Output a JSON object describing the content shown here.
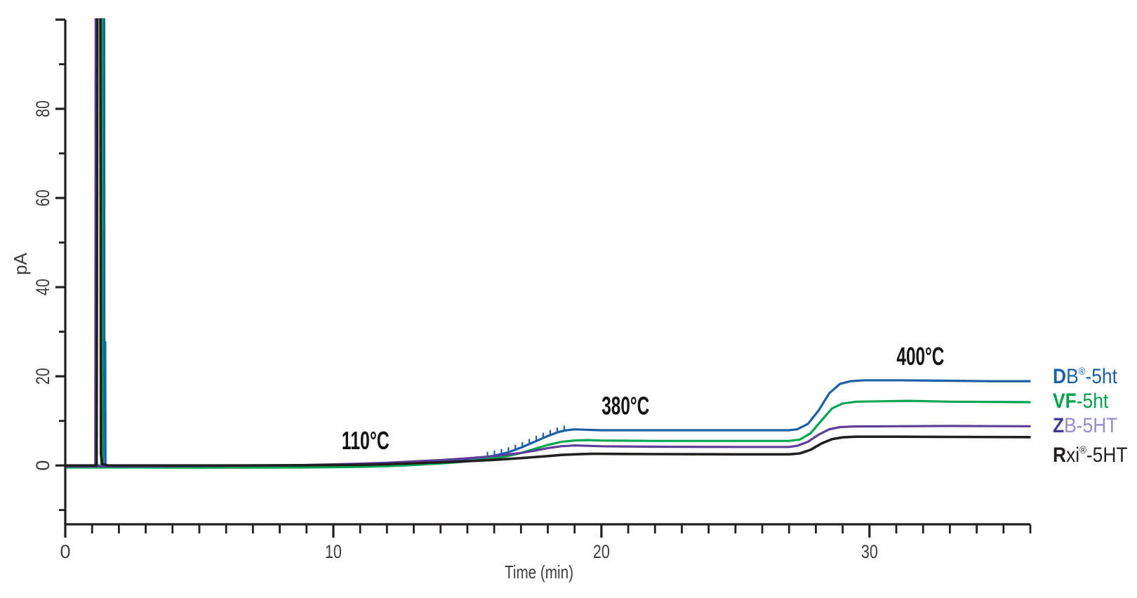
{
  "chart_data": {
    "type": "line",
    "title": "",
    "xlabel": "Time (min)",
    "ylabel": "pA",
    "xlim": [
      0,
      36
    ],
    "ylim": [
      -13.2,
      100
    ],
    "x_major_ticks": [
      0,
      10,
      20,
      30
    ],
    "x_minor_step": 1,
    "y_major_ticks": [
      0,
      20,
      40,
      60,
      80,
      100
    ],
    "y_minor_ticks": [
      -10,
      10,
      30,
      50,
      70,
      90
    ],
    "y_tick_labels": [
      0,
      20,
      40,
      60,
      80
    ],
    "grid": false,
    "legend_position": "right-outside",
    "axis_color": "#231f20",
    "tick_label_color": "#3d3d3d",
    "annotations": [
      {
        "text": "110°C",
        "x_min": 11.2,
        "y_pA": 5.7
      },
      {
        "text": "380°C",
        "x_min": 20.9,
        "y_pA": 13.5
      },
      {
        "text": "400°C",
        "x_min": 31.9,
        "y_pA": 24.6
      }
    ],
    "solvent_peak_time_min": 1.3,
    "series": [
      {
        "name": "DB®-5ht",
        "color": "#1a5fa8",
        "width": 3.2,
        "points": [
          [
            0,
            0
          ],
          [
            1.41,
            0
          ],
          [
            1.425,
            105
          ],
          [
            1.45,
            105
          ],
          [
            1.458,
            27.7
          ],
          [
            1.49,
            27.7
          ],
          [
            1.5,
            0
          ],
          [
            3,
            0
          ],
          [
            6,
            0
          ],
          [
            9,
            0.05
          ],
          [
            11,
            0.2
          ],
          [
            12,
            0.35
          ],
          [
            13,
            0.6
          ],
          [
            14,
            1.0
          ],
          [
            15,
            1.5
          ],
          [
            15.7,
            1.9
          ],
          [
            16,
            2.2
          ],
          [
            16.5,
            2.9
          ],
          [
            17,
            4.0
          ],
          [
            17.5,
            5.3
          ],
          [
            18,
            6.6
          ],
          [
            18.4,
            7.5
          ],
          [
            18.7,
            7.9
          ],
          [
            19,
            8.1
          ],
          [
            19.4,
            8.0
          ],
          [
            20,
            7.9
          ],
          [
            22,
            7.9
          ],
          [
            25,
            7.9
          ],
          [
            27,
            7.9
          ],
          [
            27.3,
            8.1
          ],
          [
            27.7,
            9.3
          ],
          [
            28.1,
            12.3
          ],
          [
            28.5,
            16.2
          ],
          [
            28.9,
            18.3
          ],
          [
            29.3,
            18.9
          ],
          [
            29.8,
            19.1
          ],
          [
            31,
            19.1
          ],
          [
            33,
            19.0
          ],
          [
            34.5,
            18.9
          ],
          [
            36,
            18.9
          ]
        ]
      },
      {
        "name": "VF-5ht",
        "color": "#00a551",
        "width": 3.2,
        "points": [
          [
            0,
            -0.45
          ],
          [
            1.34,
            -0.45
          ],
          [
            1.355,
            105
          ],
          [
            1.375,
            105
          ],
          [
            1.39,
            -0.45
          ],
          [
            3,
            -0.45
          ],
          [
            6,
            -0.5
          ],
          [
            9,
            -0.45
          ],
          [
            11,
            -0.3
          ],
          [
            12,
            -0.15
          ],
          [
            13,
            0.1
          ],
          [
            14,
            0.45
          ],
          [
            15,
            0.9
          ],
          [
            16,
            1.6
          ],
          [
            16.5,
            2.1
          ],
          [
            17,
            2.8
          ],
          [
            17.5,
            3.7
          ],
          [
            18,
            4.6
          ],
          [
            18.5,
            5.3
          ],
          [
            19,
            5.6
          ],
          [
            19.5,
            5.7
          ],
          [
            20,
            5.6
          ],
          [
            22,
            5.5
          ],
          [
            25,
            5.5
          ],
          [
            27,
            5.5
          ],
          [
            27.4,
            5.8
          ],
          [
            27.8,
            7.2
          ],
          [
            28.2,
            10.0
          ],
          [
            28.6,
            12.8
          ],
          [
            29,
            13.9
          ],
          [
            29.5,
            14.3
          ],
          [
            30.5,
            14.4
          ],
          [
            31.5,
            14.5
          ],
          [
            33,
            14.3
          ],
          [
            36,
            14.2
          ]
        ]
      },
      {
        "name": "ZB-5HT",
        "color": "#5c3d99",
        "width": 3.2,
        "points": [
          [
            0,
            -0.2
          ],
          [
            1.12,
            -0.2
          ],
          [
            1.135,
            105
          ],
          [
            1.155,
            105
          ],
          [
            1.17,
            -0.2
          ],
          [
            3,
            -0.2
          ],
          [
            6,
            -0.1
          ],
          [
            8,
            0.0
          ],
          [
            10,
            0.25
          ],
          [
            11,
            0.4
          ],
          [
            12,
            0.6
          ],
          [
            13,
            0.9
          ],
          [
            14,
            1.2
          ],
          [
            15,
            1.6
          ],
          [
            16,
            2.1
          ],
          [
            17,
            2.8
          ],
          [
            17.5,
            3.3
          ],
          [
            18,
            3.9
          ],
          [
            18.5,
            4.3
          ],
          [
            19,
            4.5
          ],
          [
            19.5,
            4.4
          ],
          [
            20,
            4.3
          ],
          [
            22,
            4.2
          ],
          [
            25,
            4.15
          ],
          [
            27,
            4.15
          ],
          [
            27.3,
            4.4
          ],
          [
            27.7,
            5.3
          ],
          [
            28.1,
            6.9
          ],
          [
            28.5,
            8.1
          ],
          [
            28.9,
            8.6
          ],
          [
            29.4,
            8.75
          ],
          [
            31,
            8.8
          ],
          [
            33,
            8.85
          ],
          [
            36,
            8.8
          ]
        ]
      },
      {
        "name": "Rxi®-5HT",
        "color": "#231f20",
        "width": 3.6,
        "points": [
          [
            0,
            0
          ],
          [
            1.17,
            0
          ],
          [
            1.2,
            105
          ],
          [
            1.31,
            105
          ],
          [
            1.33,
            2.5
          ],
          [
            1.38,
            0.3
          ],
          [
            1.6,
            0
          ],
          [
            3,
            0
          ],
          [
            6,
            0
          ],
          [
            9,
            0.05
          ],
          [
            11,
            0.15
          ],
          [
            12,
            0.3
          ],
          [
            13,
            0.5
          ],
          [
            14,
            0.7
          ],
          [
            15,
            0.95
          ],
          [
            16,
            1.25
          ],
          [
            17,
            1.65
          ],
          [
            18,
            2.1
          ],
          [
            18.5,
            2.35
          ],
          [
            19,
            2.5
          ],
          [
            19.6,
            2.6
          ],
          [
            20,
            2.6
          ],
          [
            22,
            2.55
          ],
          [
            25,
            2.5
          ],
          [
            27,
            2.5
          ],
          [
            27.4,
            2.7
          ],
          [
            27.8,
            3.5
          ],
          [
            28.2,
            4.9
          ],
          [
            28.6,
            5.9
          ],
          [
            29,
            6.3
          ],
          [
            29.5,
            6.45
          ],
          [
            31,
            6.45
          ],
          [
            33,
            6.4
          ],
          [
            36,
            6.35
          ]
        ]
      }
    ],
    "bleed_spikes": {
      "series": "DB®-5ht",
      "height_pA": 1.0,
      "points": [
        [
          15.75,
          1.9
        ],
        [
          16.01,
          2.2
        ],
        [
          16.27,
          2.55
        ],
        [
          16.53,
          2.95
        ],
        [
          16.79,
          3.5
        ],
        [
          17.05,
          4.1
        ],
        [
          17.31,
          4.8
        ],
        [
          17.57,
          5.5
        ],
        [
          17.83,
          6.2
        ],
        [
          18.09,
          6.8
        ],
        [
          18.35,
          7.4
        ],
        [
          18.61,
          7.8
        ]
      ]
    }
  },
  "legend": {
    "items": [
      {
        "label": "DB®-5ht",
        "color": "#1a5fa8",
        "parts": [
          {
            "t": "D",
            "b": 1
          },
          {
            "t": "B"
          },
          {
            "t": "®",
            "s": 1
          },
          {
            "t": "-5ht"
          }
        ]
      },
      {
        "label": "VF-5ht",
        "color": "#00a24e",
        "parts": [
          {
            "t": "VF",
            "b": 1
          },
          {
            "t": "-5ht"
          }
        ]
      },
      {
        "label": "ZB-5HT",
        "color": "#413b94",
        "parts": [
          {
            "t": "Z",
            "b": 1,
            "c": "#413b94"
          },
          {
            "t": "B-5HT",
            "c": "#938dcd"
          }
        ]
      },
      {
        "label": "Rxi®-5HT",
        "color": "#231f20",
        "parts": [
          {
            "t": "R",
            "b": 1
          },
          {
            "t": "xi"
          },
          {
            "t": "®",
            "s": 1
          },
          {
            "t": "-5HT"
          }
        ]
      }
    ]
  }
}
